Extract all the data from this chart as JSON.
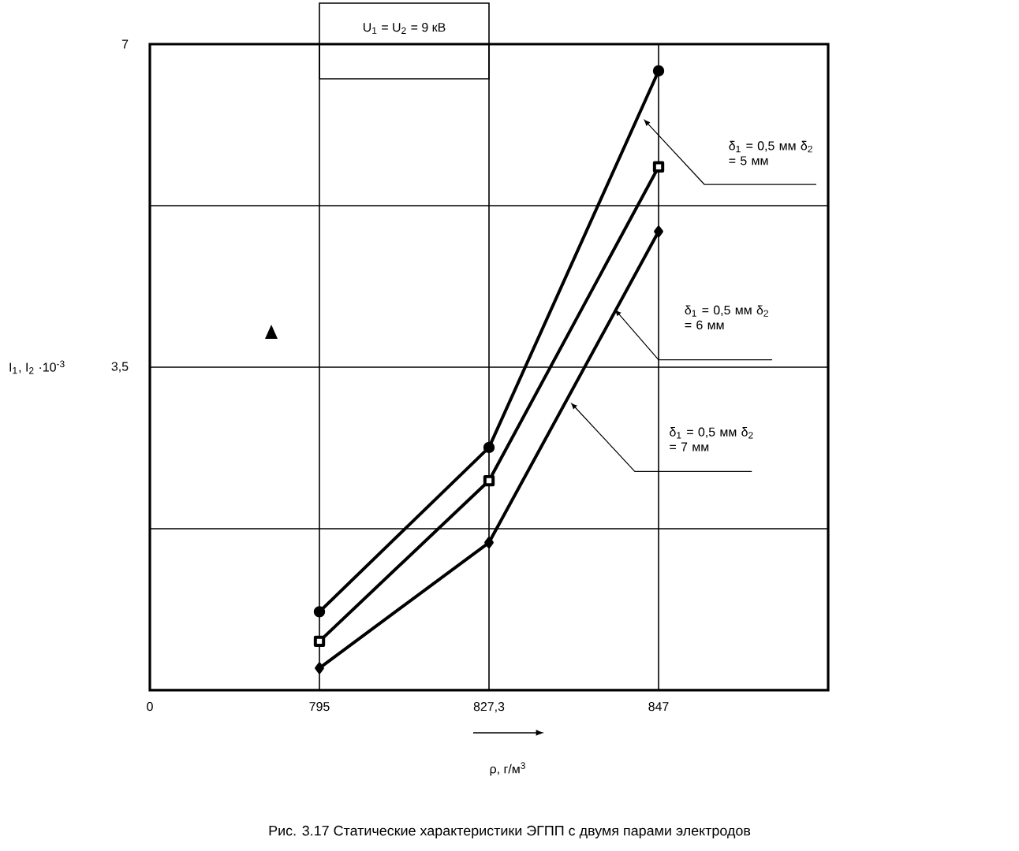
{
  "chart_data": {
    "type": "line",
    "xlabel": "ρ, г/м$^{3}$",
    "ylabel": "I$_{1}$, I$_{2}$ ·10$^{-3}$",
    "annotations": [
      "U$_{1}$ = U$_{2}$ = 9 кВ",
      "Рис. 3.17 Статические характеристики ЭГПП с двумя парами электродов"
    ],
    "categories": [
      "0",
      "795",
      "827,3",
      "847",
      null
    ],
    "ylim": [
      0,
      7
    ],
    "yticks": [
      {
        "value": 0,
        "label": null
      },
      {
        "value": 1.75,
        "label": null
      },
      {
        "value": 3.5,
        "label": "3,5"
      },
      {
        "value": 5.25,
        "label": null
      },
      7
    ],
    "grid": true,
    "series": [
      {
        "name": "δ$_{1}$ = 0,5 мм δ$_{2}$ = 5 мм",
        "color": "#000000",
        "marker": "circle",
        "values": [
          null,
          0.85,
          2.63,
          6.71,
          null
        ]
      },
      {
        "name": "δ$_{1}$ = 0,5 мм δ$_{2}$ = 6 мм",
        "color": "#000000",
        "marker": "square",
        "values": [
          null,
          0.53,
          2.27,
          5.67,
          null
        ]
      },
      {
        "name": "δ$_{1}$ = 0,5 мм δ$_{2}$ = 7 мм",
        "color": "#000000",
        "marker": "diamond",
        "values": [
          null,
          0.24,
          1.6,
          4.97,
          null
        ]
      }
    ]
  }
}
